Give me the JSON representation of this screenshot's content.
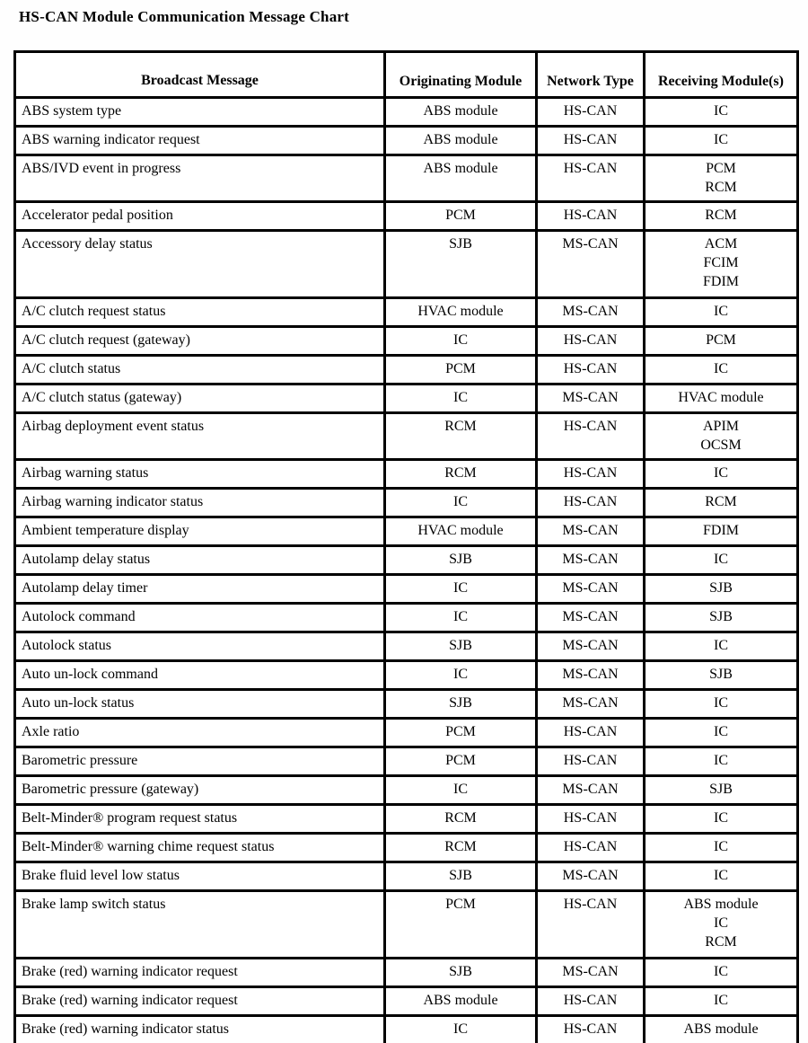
{
  "title": "HS-CAN Module Communication Message Chart",
  "table": {
    "headers": [
      "Broadcast Message",
      "Originating Module",
      "Network Type",
      "Receiving Module(s)"
    ],
    "rows": [
      {
        "message": "ABS system type",
        "origin": "ABS module",
        "network": "HS-CAN",
        "receiving": [
          "IC"
        ]
      },
      {
        "message": "ABS warning indicator request",
        "origin": "ABS module",
        "network": "HS-CAN",
        "receiving": [
          "IC"
        ]
      },
      {
        "message": "ABS/IVD event in progress",
        "origin": "ABS module",
        "network": "HS-CAN",
        "receiving": [
          "PCM",
          "RCM"
        ]
      },
      {
        "message": "Accelerator pedal position",
        "origin": "PCM",
        "network": "HS-CAN",
        "receiving": [
          "RCM"
        ]
      },
      {
        "message": "Accessory delay status",
        "origin": "SJB",
        "network": "MS-CAN",
        "receiving": [
          "ACM",
          "FCIM",
          "FDIM"
        ]
      },
      {
        "message": "A/C clutch request status",
        "origin": "HVAC module",
        "network": "MS-CAN",
        "receiving": [
          "IC"
        ]
      },
      {
        "message": "A/C clutch request (gateway)",
        "origin": "IC",
        "network": "HS-CAN",
        "receiving": [
          "PCM"
        ]
      },
      {
        "message": "A/C clutch status",
        "origin": "PCM",
        "network": "HS-CAN",
        "receiving": [
          "IC"
        ]
      },
      {
        "message": "A/C clutch status (gateway)",
        "origin": "IC",
        "network": "MS-CAN",
        "receiving": [
          "HVAC module"
        ]
      },
      {
        "message": "Airbag deployment event status",
        "origin": "RCM",
        "network": "HS-CAN",
        "receiving": [
          "APIM",
          "OCSM"
        ]
      },
      {
        "message": "Airbag warning status",
        "origin": "RCM",
        "network": "HS-CAN",
        "receiving": [
          "IC"
        ]
      },
      {
        "message": "Airbag warning indicator status",
        "origin": "IC",
        "network": "HS-CAN",
        "receiving": [
          "RCM"
        ]
      },
      {
        "message": "Ambient temperature display",
        "origin": "HVAC module",
        "network": "MS-CAN",
        "receiving": [
          "FDIM"
        ]
      },
      {
        "message": "Autolamp delay status",
        "origin": "SJB",
        "network": "MS-CAN",
        "receiving": [
          "IC"
        ]
      },
      {
        "message": "Autolamp delay timer",
        "origin": "IC",
        "network": "MS-CAN",
        "receiving": [
          "SJB"
        ]
      },
      {
        "message": "Autolock command",
        "origin": "IC",
        "network": "MS-CAN",
        "receiving": [
          "SJB"
        ]
      },
      {
        "message": "Autolock status",
        "origin": "SJB",
        "network": "MS-CAN",
        "receiving": [
          "IC"
        ]
      },
      {
        "message": "Auto un-lock command",
        "origin": "IC",
        "network": "MS-CAN",
        "receiving": [
          "SJB"
        ]
      },
      {
        "message": "Auto un-lock status",
        "origin": "SJB",
        "network": "MS-CAN",
        "receiving": [
          "IC"
        ]
      },
      {
        "message": "Axle ratio",
        "origin": "PCM",
        "network": "HS-CAN",
        "receiving": [
          "IC"
        ]
      },
      {
        "message": "Barometric pressure",
        "origin": "PCM",
        "network": "HS-CAN",
        "receiving": [
          "IC"
        ]
      },
      {
        "message": "Barometric pressure (gateway)",
        "origin": "IC",
        "network": "MS-CAN",
        "receiving": [
          "SJB"
        ]
      },
      {
        "message": "Belt-Minder® program request status",
        "origin": "RCM",
        "network": "HS-CAN",
        "receiving": [
          "IC"
        ]
      },
      {
        "message": "Belt-Minder® warning chime request status",
        "origin": "RCM",
        "network": "HS-CAN",
        "receiving": [
          "IC"
        ]
      },
      {
        "message": "Brake fluid level low status",
        "origin": "SJB",
        "network": "MS-CAN",
        "receiving": [
          "IC"
        ]
      },
      {
        "message": "Brake lamp switch status",
        "origin": "PCM",
        "network": "HS-CAN",
        "receiving": [
          "ABS module",
          "IC",
          "RCM"
        ]
      },
      {
        "message": "Brake (red) warning indicator request",
        "origin": "SJB",
        "network": "MS-CAN",
        "receiving": [
          "IC"
        ]
      },
      {
        "message": "Brake (red) warning indicator request",
        "origin": "ABS module",
        "network": "HS-CAN",
        "receiving": [
          "IC"
        ]
      },
      {
        "message": "Brake (red) warning indicator status",
        "origin": "IC",
        "network": "HS-CAN",
        "receiving": [
          "ABS module"
        ]
      }
    ]
  }
}
